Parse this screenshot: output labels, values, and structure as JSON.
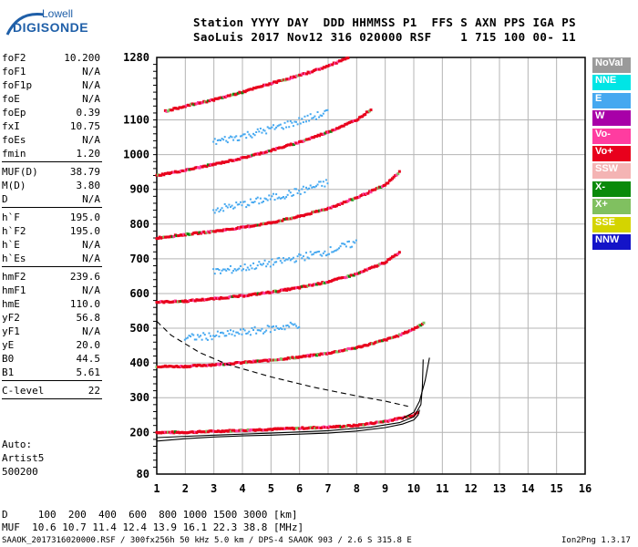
{
  "logo": {
    "line1": "Lowell",
    "line2": "DIGISONDE"
  },
  "header": {
    "line1": "Station YYYY DAY  DDD HHMMSS P1  FFS S AXN PPS IGA PS",
    "line2": "SaoLuis 2017 Nov12 316 020000 RSF    1 715 100 00- 11"
  },
  "params": [
    {
      "k": "foF2",
      "v": "10.200"
    },
    {
      "k": "foF1",
      "v": "N/A"
    },
    {
      "k": "foF1p",
      "v": "N/A"
    },
    {
      "k": "foE",
      "v": "N/A"
    },
    {
      "k": "foEp",
      "v": "0.39"
    },
    {
      "k": "fxI",
      "v": "10.75"
    },
    {
      "k": "foEs",
      "v": "N/A"
    },
    {
      "k": "fmin",
      "v": "1.20"
    },
    {
      "k": "MUF(D)",
      "v": "38.79"
    },
    {
      "k": "M(D)",
      "v": "3.80"
    },
    {
      "k": "D",
      "v": "N/A"
    },
    {
      "k": "h`F",
      "v": "195.0"
    },
    {
      "k": "h`F2",
      "v": "195.0"
    },
    {
      "k": "h`E",
      "v": "N/A"
    },
    {
      "k": "h`Es",
      "v": "N/A"
    },
    {
      "k": "hmF2",
      "v": "239.6"
    },
    {
      "k": "hmF1",
      "v": "N/A"
    },
    {
      "k": "hmE",
      "v": "110.0"
    },
    {
      "k": "yF2",
      "v": "56.8"
    },
    {
      "k": "yF1",
      "v": "N/A"
    },
    {
      "k": "yE",
      "v": "20.0"
    },
    {
      "k": "B0",
      "v": "44.5"
    },
    {
      "k": "B1",
      "v": "5.61"
    },
    {
      "k": "C-level",
      "v": "22"
    }
  ],
  "auto": {
    "l1": "Auto:",
    "l2": "Artist5",
    "l3": "500200"
  },
  "legend": [
    {
      "label": "NoVal",
      "color": "#9a9a9a"
    },
    {
      "label": "NNE",
      "color": "#00e5e5"
    },
    {
      "label": "E",
      "color": "#45a8f0"
    },
    {
      "label": "W",
      "color": "#a800a8"
    },
    {
      "label": "Vo-",
      "color": "#ff3ca0"
    },
    {
      "label": "Vo+",
      "color": "#e8001c"
    },
    {
      "label": "SSW",
      "color": "#f4b4b4"
    },
    {
      "label": "X-",
      "color": "#0a8a0a"
    },
    {
      "label": "X+",
      "color": "#80c060"
    },
    {
      "label": "SSE",
      "color": "#d4d400"
    },
    {
      "label": "NNW",
      "color": "#1414c8"
    }
  ],
  "bottom": {
    "row1": "D     100  200  400  600  800 1000 1500 3000 [km]",
    "row2": "MUF  10.6 10.7 11.4 12.4 13.9 16.1 22.3 38.8 [MHz]"
  },
  "footer": {
    "left": "SAAOK_2017316020000.RSF / 300fx256h 50 kHz 5.0 km / DPS-4 SAAOK 903 / 2.6 S 315.8 E",
    "right": "Ion2Png 1.3.17"
  },
  "chart_data": {
    "type": "scatter",
    "title": "",
    "xlabel": "",
    "ylabel": "",
    "xlim": [
      1,
      16
    ],
    "ylim": [
      80,
      1280
    ],
    "x_ticks": [
      1,
      2,
      3,
      4,
      5,
      6,
      7,
      8,
      9,
      10,
      11,
      12,
      13,
      14,
      15,
      16
    ],
    "y_ticks": [
      80,
      200,
      300,
      400,
      500,
      600,
      700,
      800,
      900,
      1000,
      1100,
      1280
    ],
    "grid": true,
    "legend_position": "right",
    "series": [
      {
        "name": "Vo+",
        "points": [
          [
            1.0,
            200
          ],
          [
            2,
            200
          ],
          [
            3,
            203
          ],
          [
            4,
            206
          ],
          [
            5,
            209
          ],
          [
            6,
            212
          ],
          [
            7,
            215
          ],
          [
            8,
            220
          ],
          [
            9,
            232
          ],
          [
            9.5,
            240
          ],
          [
            10,
            250
          ],
          [
            10.2,
            262
          ]
        ]
      },
      {
        "name": "Vo+",
        "points": [
          [
            1.0,
            390
          ],
          [
            2,
            390
          ],
          [
            3,
            395
          ],
          [
            4,
            401
          ],
          [
            5,
            408
          ],
          [
            6,
            417
          ],
          [
            7,
            428
          ],
          [
            8,
            444
          ],
          [
            9,
            466
          ],
          [
            9.5,
            480
          ],
          [
            10,
            498
          ],
          [
            10.4,
            518
          ]
        ]
      },
      {
        "name": "Vo+",
        "points": [
          [
            1.0,
            575
          ],
          [
            2,
            578
          ],
          [
            3,
            585
          ],
          [
            4,
            593
          ],
          [
            5,
            604
          ],
          [
            6,
            617
          ],
          [
            7,
            634
          ],
          [
            8,
            656
          ],
          [
            9,
            690
          ],
          [
            9.5,
            718
          ]
        ]
      },
      {
        "name": "Vo+",
        "points": [
          [
            1.0,
            760
          ],
          [
            2,
            770
          ],
          [
            3,
            779
          ],
          [
            4,
            790
          ],
          [
            5,
            804
          ],
          [
            6,
            822
          ],
          [
            7,
            845
          ],
          [
            8,
            876
          ],
          [
            9,
            912
          ],
          [
            9.5,
            950
          ]
        ]
      },
      {
        "name": "Vo+",
        "points": [
          [
            1.0,
            940
          ],
          [
            2,
            955
          ],
          [
            3,
            972
          ],
          [
            4,
            990
          ],
          [
            5,
            1012
          ],
          [
            6,
            1036
          ],
          [
            7,
            1065
          ],
          [
            8,
            1100
          ],
          [
            8.5,
            1130
          ]
        ]
      },
      {
        "name": "Vo+",
        "points": [
          [
            1.3,
            1125
          ],
          [
            2,
            1140
          ],
          [
            3,
            1158
          ],
          [
            4,
            1180
          ],
          [
            5,
            1205
          ],
          [
            6,
            1228
          ],
          [
            7,
            1255
          ],
          [
            7.7,
            1280
          ]
        ]
      },
      {
        "name": "E",
        "points": [
          [
            2,
            470
          ],
          [
            3,
            477
          ],
          [
            4,
            486
          ],
          [
            5,
            497
          ],
          [
            6,
            510
          ]
        ]
      },
      {
        "name": "E",
        "points": [
          [
            3,
            660
          ],
          [
            4,
            672
          ],
          [
            5,
            686
          ],
          [
            6,
            702
          ],
          [
            7,
            720
          ],
          [
            8,
            745
          ]
        ]
      },
      {
        "name": "E",
        "points": [
          [
            3,
            840
          ],
          [
            4,
            855
          ],
          [
            5,
            873
          ],
          [
            6,
            893
          ],
          [
            7,
            918
          ]
        ]
      },
      {
        "name": "E",
        "points": [
          [
            3,
            1035
          ],
          [
            4,
            1052
          ],
          [
            5,
            1072
          ],
          [
            6,
            1095
          ],
          [
            7,
            1120
          ]
        ]
      }
    ]
  }
}
